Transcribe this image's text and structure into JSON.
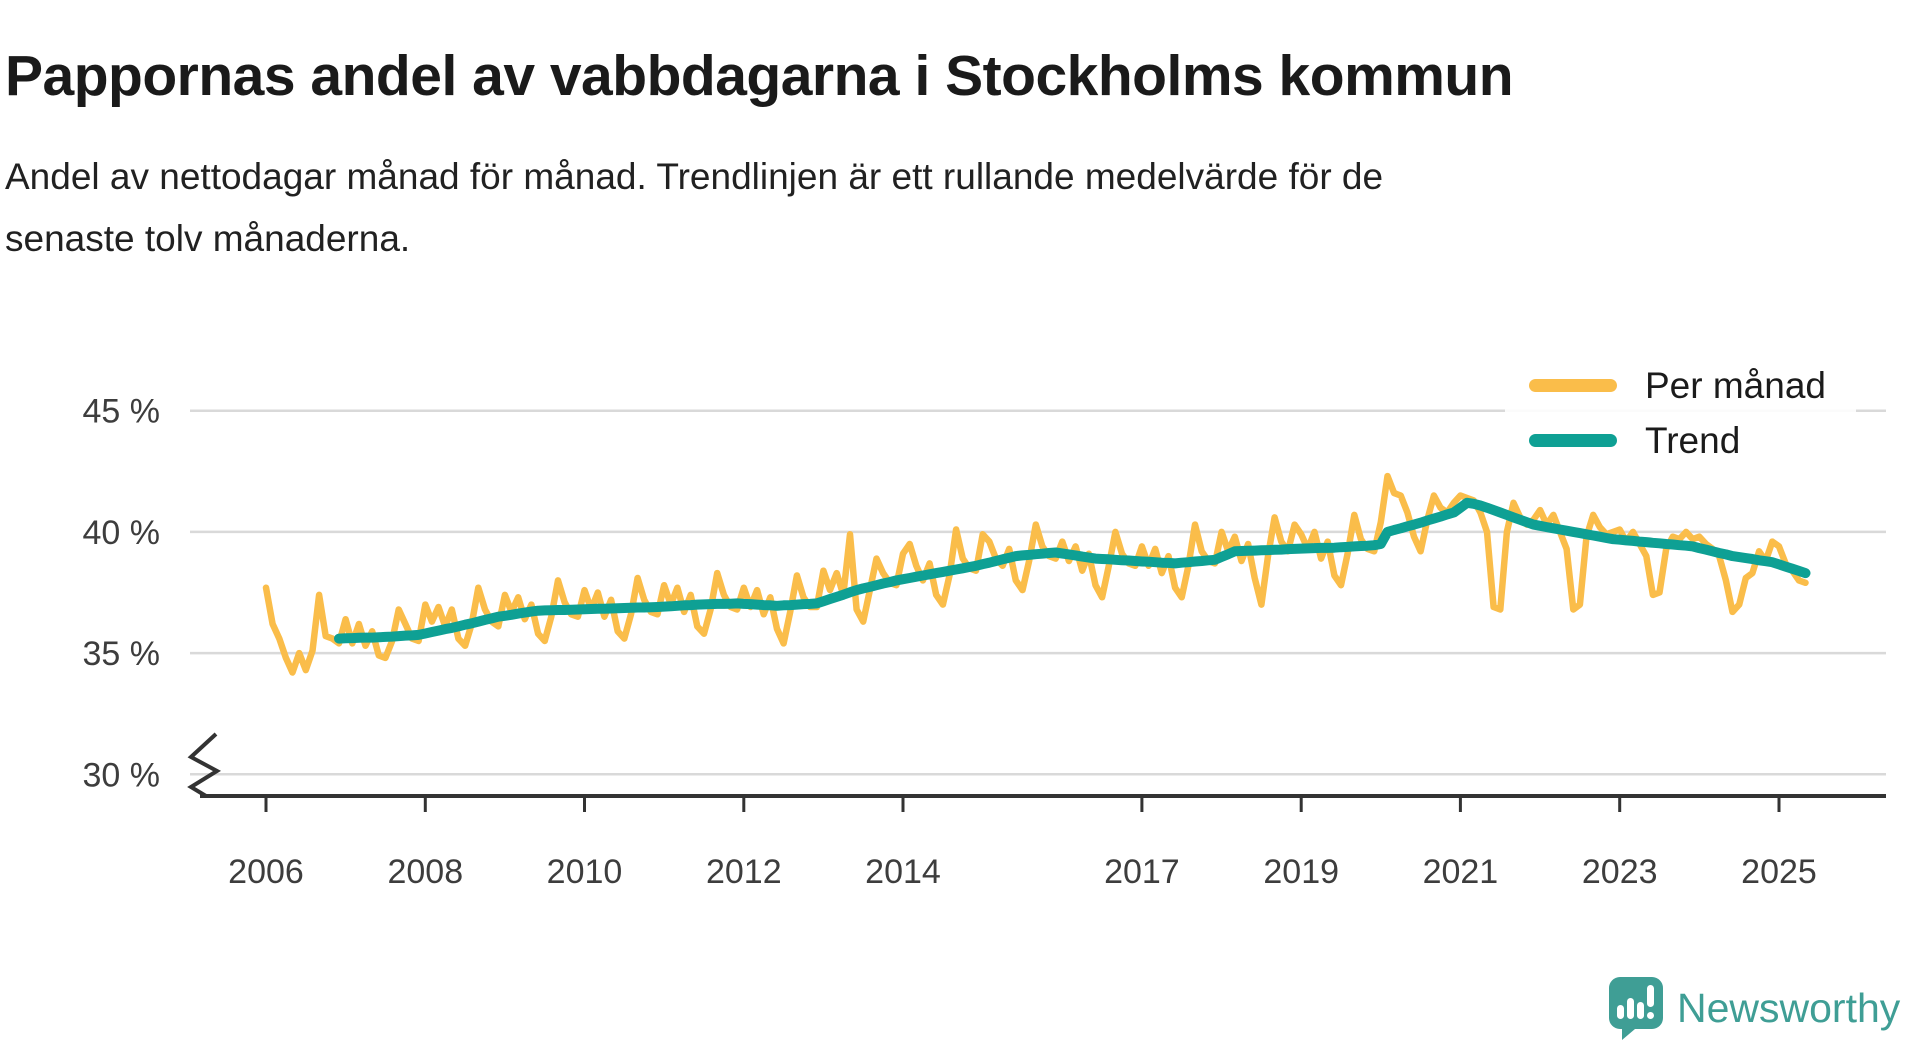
{
  "header": {
    "title": "Pappornas andel av vabbdagarna i Stockholms kommun",
    "subtitle_lines": [
      "Andel av nettodagar månad för månad. Trendlinjen är ett rullande medelvärde för de",
      "senaste tolv månaderna."
    ]
  },
  "legend": {
    "items": [
      {
        "label": "Per månad",
        "color": "#FABD4A"
      },
      {
        "label": "Trend",
        "color": "#0EA094"
      }
    ]
  },
  "footer": {
    "brand": "Newsworthy",
    "logo_icon": "newsworthy-speech-bubble-chart-icon",
    "brand_color": "#3f9e95"
  },
  "colors": {
    "per_manad": "#FABD4A",
    "trend": "#0EA094",
    "gridline": "#d9d9d9",
    "axis": "#333333",
    "tick_text": "#3d3d3d"
  },
  "chart_data": {
    "type": "line",
    "title": "Pappornas andel av vabbdagarna i Stockholms kommun",
    "unit": "%",
    "x_freq": "monthly",
    "x_tick_years": [
      2006,
      2008,
      2010,
      2012,
      2014,
      2017,
      2019,
      2021,
      2023,
      2025
    ],
    "y_ticks": [
      30,
      35,
      40,
      45
    ],
    "y_tick_labels": [
      "30 %",
      "35 %",
      "40 %",
      "45 %"
    ],
    "ylim_display": [
      30,
      45
    ],
    "axis_break_at_30": true,
    "grid": "horizontal",
    "legend_position": "top-right",
    "series": [
      {
        "name": "Per månad",
        "color": "#FABD4A",
        "width": 6.5,
        "start": "2006-01",
        "values": [
          37.7,
          36.2,
          35.6,
          34.8,
          34.2,
          35.0,
          34.3,
          35.1,
          37.4,
          35.7,
          35.6,
          35.4,
          36.4,
          35.4,
          36.2,
          35.3,
          35.9,
          34.9,
          34.8,
          35.5,
          36.8,
          36.2,
          35.6,
          35.5,
          37.0,
          36.3,
          36.9,
          36.1,
          36.8,
          35.6,
          35.3,
          36.2,
          37.7,
          36.8,
          36.3,
          36.1,
          37.4,
          36.7,
          37.3,
          36.4,
          37.0,
          35.8,
          35.5,
          36.5,
          38.0,
          37.1,
          36.6,
          36.5,
          37.6,
          36.8,
          37.5,
          36.5,
          37.2,
          35.9,
          35.6,
          36.6,
          38.1,
          37.2,
          36.7,
          36.6,
          37.8,
          37.0,
          37.7,
          36.7,
          37.4,
          36.1,
          35.8,
          36.8,
          38.3,
          37.4,
          36.9,
          36.8,
          37.7,
          36.9,
          37.6,
          36.6,
          37.3,
          36.0,
          35.4,
          36.7,
          38.2,
          37.3,
          36.9,
          36.9,
          38.4,
          37.6,
          38.3,
          37.4,
          39.9,
          36.8,
          36.3,
          37.6,
          38.9,
          38.3,
          37.9,
          37.8,
          39.1,
          39.5,
          38.6,
          38.0,
          38.7,
          37.4,
          37.0,
          38.2,
          40.1,
          38.9,
          38.5,
          38.4,
          39.9,
          39.6,
          38.9,
          38.6,
          39.3,
          38.0,
          37.6,
          38.8,
          40.3,
          39.4,
          39.0,
          38.9,
          39.6,
          38.8,
          39.4,
          38.4,
          39.1,
          37.8,
          37.3,
          38.6,
          40.0,
          39.1,
          38.7,
          38.6,
          39.4,
          38.6,
          39.3,
          38.3,
          39.0,
          37.7,
          37.3,
          38.6,
          40.3,
          39.2,
          38.8,
          38.7,
          40.0,
          39.2,
          39.8,
          38.8,
          39.5,
          38.1,
          37.0,
          39.0,
          40.6,
          39.6,
          39.2,
          40.3,
          39.9,
          39.3,
          40.0,
          38.9,
          39.6,
          38.2,
          37.8,
          39.1,
          40.7,
          39.7,
          39.3,
          39.2,
          40.4,
          42.3,
          41.6,
          41.5,
          40.8,
          39.8,
          39.2,
          40.5,
          41.5,
          41.0,
          40.8,
          41.2,
          41.5,
          41.4,
          41.3,
          40.8,
          40.0,
          36.9,
          36.8,
          40.0,
          41.2,
          40.6,
          40.3,
          40.5,
          40.9,
          40.3,
          40.7,
          40.0,
          39.3,
          36.8,
          37.0,
          39.8,
          40.7,
          40.2,
          39.9,
          40.0,
          40.1,
          39.6,
          40.0,
          39.5,
          39.0,
          37.4,
          37.5,
          39.3,
          39.8,
          39.7,
          40.0,
          39.7,
          39.8,
          39.5,
          39.3,
          39.0,
          38.0,
          36.7,
          37.0,
          38.1,
          38.3,
          39.2,
          38.8,
          39.6,
          39.4,
          38.7,
          38.4,
          38.0,
          37.9
        ]
      },
      {
        "name": "Trend",
        "color": "#0EA094",
        "width": 10,
        "start": "2006-12",
        "note": "rullande 12-månaders medelvärde",
        "values": [
          35.6,
          35.61,
          35.62,
          35.63,
          35.64,
          35.64,
          35.65,
          35.67,
          35.68,
          35.7,
          35.72,
          35.73,
          35.75,
          35.81,
          35.87,
          35.93,
          35.99,
          36.04,
          36.1,
          36.17,
          36.23,
          36.3,
          36.37,
          36.43,
          36.5,
          36.54,
          36.58,
          36.63,
          36.67,
          36.71,
          36.75,
          36.76,
          36.77,
          36.78,
          36.78,
          36.79,
          36.8,
          36.81,
          36.82,
          36.83,
          36.83,
          36.84,
          36.85,
          36.86,
          36.87,
          36.88,
          36.88,
          36.89,
          36.9,
          36.92,
          36.93,
          36.95,
          36.97,
          36.98,
          37.0,
          37.01,
          37.02,
          37.03,
          37.03,
          37.04,
          37.05,
          37.03,
          37.02,
          37.0,
          36.98,
          36.97,
          36.95,
          36.97,
          36.98,
          37.0,
          37.02,
          37.03,
          37.05,
          37.14,
          37.23,
          37.32,
          37.41,
          37.51,
          37.6,
          37.67,
          37.73,
          37.8,
          37.87,
          37.93,
          38.0,
          38.05,
          38.1,
          38.15,
          38.2,
          38.25,
          38.3,
          38.35,
          38.4,
          38.45,
          38.5,
          38.55,
          38.6,
          38.67,
          38.73,
          38.8,
          38.87,
          38.93,
          39.0,
          39.03,
          39.05,
          39.08,
          39.1,
          39.13,
          39.15,
          39.11,
          39.07,
          39.03,
          38.98,
          38.94,
          38.9,
          38.88,
          38.87,
          38.85,
          38.83,
          38.82,
          38.8,
          38.78,
          38.77,
          38.75,
          38.73,
          38.72,
          38.7,
          38.73,
          38.75,
          38.78,
          38.8,
          38.83,
          38.85,
          38.97,
          39.08,
          39.2,
          39.21,
          39.22,
          39.23,
          39.24,
          39.25,
          39.26,
          39.27,
          39.29,
          39.3,
          39.31,
          39.32,
          39.33,
          39.34,
          39.34,
          39.35,
          39.37,
          39.38,
          39.4,
          39.42,
          39.43,
          39.45,
          39.5,
          40.0,
          40.08,
          40.15,
          40.23,
          40.3,
          40.38,
          40.47,
          40.55,
          40.63,
          40.72,
          40.8,
          41.0,
          41.2,
          41.16,
          41.09,
          41.0,
          40.9,
          40.8,
          40.7,
          40.6,
          40.5,
          40.4,
          40.3,
          40.25,
          40.2,
          40.15,
          40.1,
          40.05,
          40.0,
          39.95,
          39.9,
          39.85,
          39.8,
          39.75,
          39.7,
          39.68,
          39.65,
          39.63,
          39.6,
          39.58,
          39.55,
          39.53,
          39.5,
          39.48,
          39.45,
          39.43,
          39.4,
          39.33,
          39.27,
          39.2,
          39.13,
          39.07,
          39.0,
          38.96,
          38.92,
          38.88,
          38.83,
          38.79,
          38.75,
          38.66,
          38.57,
          38.48,
          38.39,
          38.3
        ]
      }
    ]
  }
}
